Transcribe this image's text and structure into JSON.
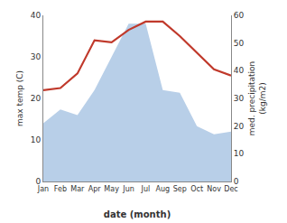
{
  "chart_data": {
    "type": "line",
    "categories": [
      "Jan",
      "Feb",
      "Mar",
      "Apr",
      "May",
      "Jun",
      "Jul",
      "Aug",
      "Sep",
      "Oct",
      "Nov",
      "Dec"
    ],
    "xlabel": "date (month)",
    "ylabel": "max temp (C)",
    "y2label": "med. precipitation\n(kg/m2)",
    "series": [
      {
        "type": "area",
        "axis": "y2",
        "color": "#b8cfe8",
        "values": [
          21,
          26,
          24,
          33,
          45,
          57,
          57,
          33,
          32,
          20,
          17,
          18
        ]
      },
      {
        "type": "line",
        "color": "#c0392b",
        "values": [
          22,
          22.5,
          26,
          34,
          33.5,
          36.5,
          38.5,
          38.5,
          35,
          31,
          27,
          25.5
        ]
      }
    ],
    "ylim": [
      0,
      40
    ],
    "yticks": [
      0,
      10,
      20,
      30,
      40
    ],
    "y2lim": [
      0,
      60
    ],
    "y2ticks": [
      0,
      10,
      20,
      30,
      40,
      50,
      60
    ],
    "grid": false
  }
}
